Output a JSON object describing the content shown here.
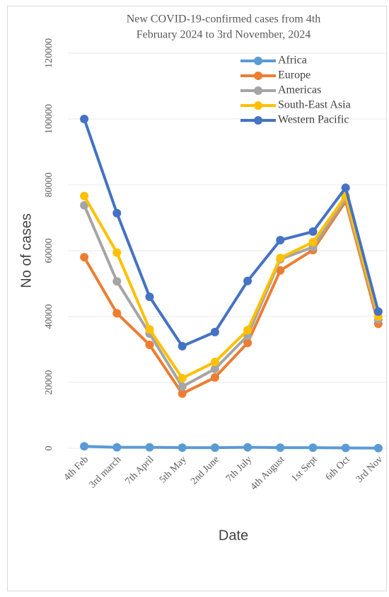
{
  "chart_data": {
    "type": "line",
    "title": [
      "New COVID-19-confirmed  cases from 4th",
      "February 2024 to 3rd November, 2024"
    ],
    "x_label": "Date",
    "y_label": "No of cases",
    "categories": [
      "4th Feb",
      "3rd march",
      "7th April",
      "5th May",
      "2nd June",
      "7th July",
      "4th August",
      "1st Sept",
      "6th Oct",
      "3rd Nov"
    ],
    "series": [
      {
        "name": "Africa",
        "color": "#5b9bd5",
        "values": [
          600,
          300,
          300,
          200,
          200,
          300,
          200,
          200,
          100,
          50
        ]
      },
      {
        "name": "Europe",
        "color": "#ed7d31",
        "values": [
          58000,
          41000,
          31400,
          16600,
          21500,
          32000,
          54000,
          60200,
          75000,
          37800
        ]
      },
      {
        "name": "Americas",
        "color": "#a5a5a5",
        "values": [
          73800,
          50700,
          34800,
          18700,
          24100,
          34200,
          57400,
          61100,
          75900,
          39100
        ]
      },
      {
        "name": "South-East Asia",
        "color": "#ffc000",
        "values": [
          76600,
          59400,
          36100,
          21300,
          26200,
          35900,
          57800,
          62600,
          76600,
          40000
        ]
      },
      {
        "name": "Western Pacific",
        "color": "#4472c4",
        "values": [
          100000,
          71400,
          46000,
          31000,
          35300,
          50800,
          63200,
          65800,
          79100,
          41500
        ]
      }
    ],
    "ylim": [
      0,
      120000
    ],
    "yticks": [
      0,
      20000,
      40000,
      60000,
      80000,
      100000,
      120000
    ],
    "grid": true
  }
}
